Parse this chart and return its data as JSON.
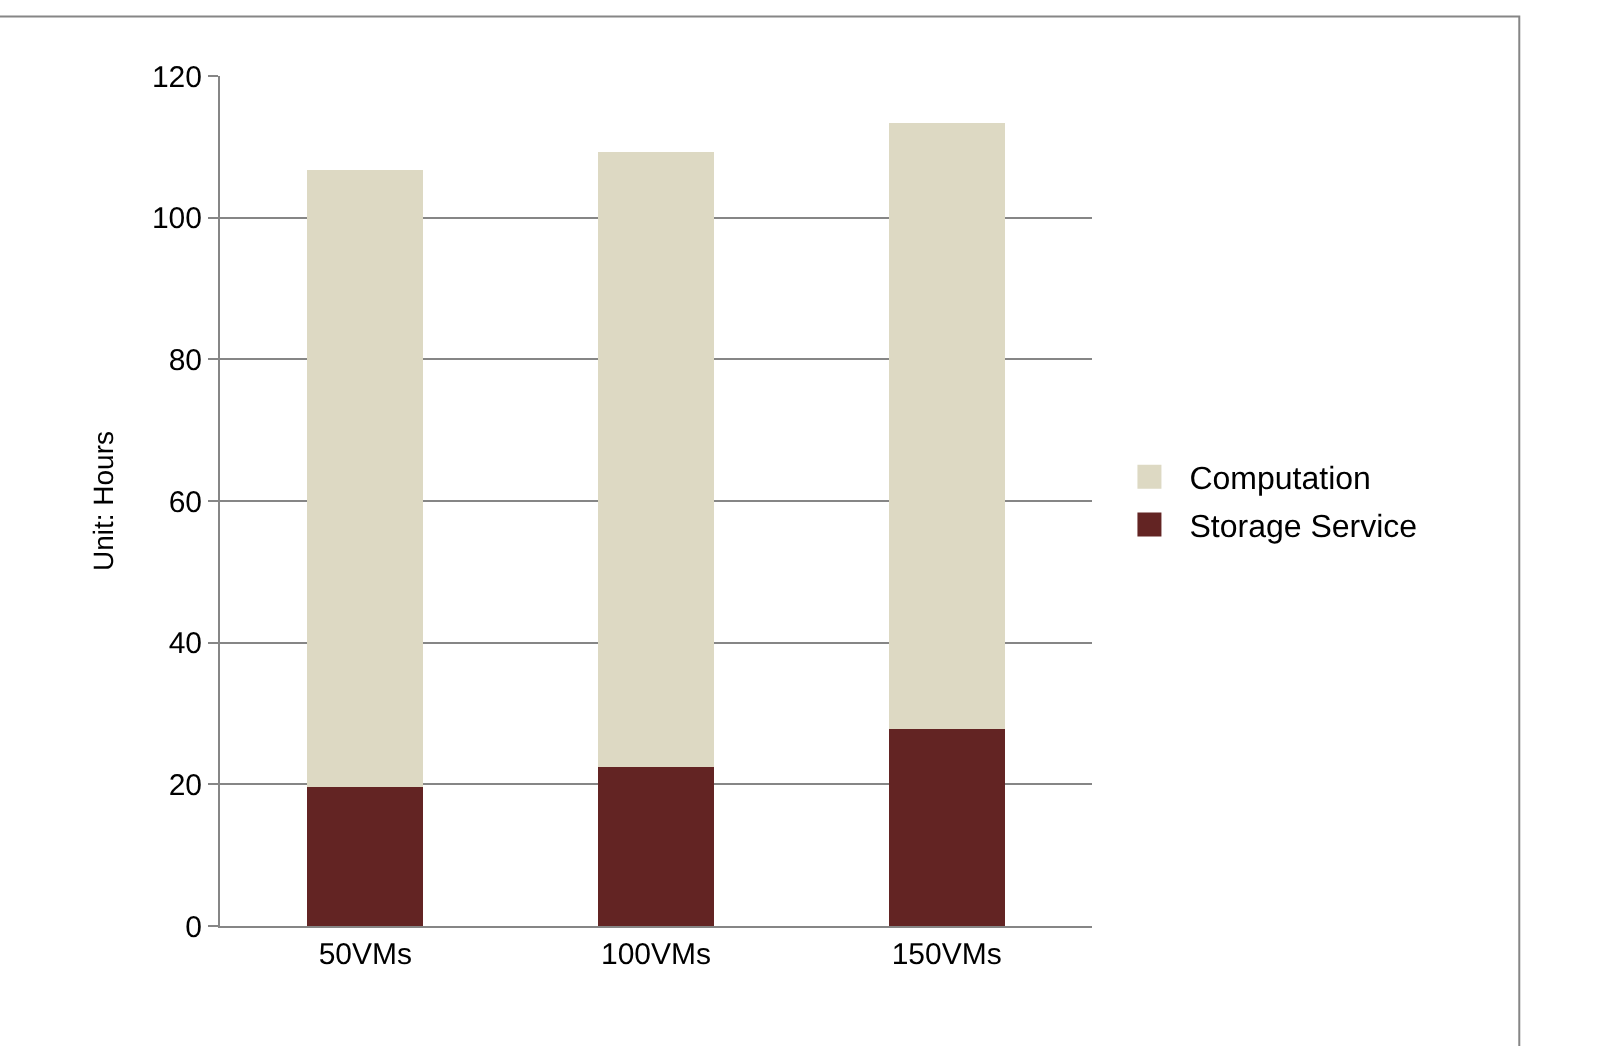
{
  "chart_data": {
    "type": "bar",
    "stacked": true,
    "ylabel": "Unit: Hours",
    "categories": [
      "50VMs",
      "100VMs",
      "150VMs"
    ],
    "series": [
      {
        "name": "Storage Service",
        "color": "#632423",
        "values": [
          19.6,
          22.5,
          27.8
        ]
      },
      {
        "name": "Computation",
        "color": "#ddd9c3",
        "values": [
          87.1,
          86.8,
          85.6
        ]
      }
    ],
    "ylim": [
      0,
      120
    ],
    "yticks": [
      0,
      20,
      40,
      60,
      80,
      100,
      120
    ],
    "grid": "y",
    "legend": "right"
  }
}
